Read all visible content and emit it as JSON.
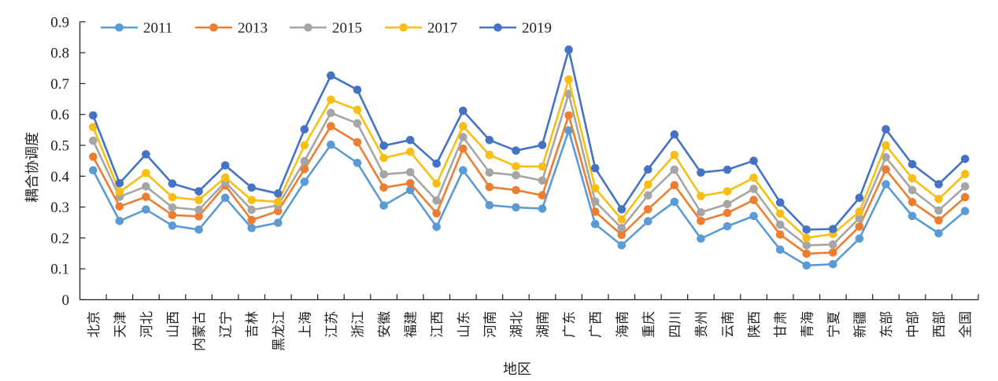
{
  "chart_data": {
    "type": "line",
    "title": "",
    "xlabel": "地区",
    "ylabel": "耦合协调度",
    "ylim": [
      0,
      0.9
    ],
    "yticks": [
      "0",
      "0.1",
      "0.2",
      "0.3",
      "0.4",
      "0.5",
      "0.6",
      "0.7",
      "0.8",
      "0.9"
    ],
    "ytick_values": [
      0,
      0.1,
      0.2,
      0.3,
      0.4,
      0.5,
      0.6,
      0.7,
      0.8,
      0.9
    ],
    "grid": false,
    "legend_position": "top-left",
    "categories": [
      "北京",
      "天津",
      "河北",
      "山西",
      "内蒙古",
      "辽宁",
      "吉林",
      "黑龙江",
      "上海",
      "江苏",
      "浙江",
      "安徽",
      "福建",
      "江西",
      "山东",
      "河南",
      "湖北",
      "湖南",
      "广东",
      "广西",
      "海南",
      "重庆",
      "四川",
      "贵州",
      "云南",
      "陕西",
      "甘肃",
      "青海",
      "宁夏",
      "新疆",
      "东部",
      "中部",
      "西部",
      "全国"
    ],
    "series": [
      {
        "name": "2011",
        "color": "#5B9BD5",
        "values": [
          0.419,
          0.255,
          0.292,
          0.24,
          0.227,
          0.33,
          0.232,
          0.249,
          0.382,
          0.502,
          0.443,
          0.305,
          0.355,
          0.236,
          0.419,
          0.306,
          0.299,
          0.295,
          0.548,
          0.245,
          0.176,
          0.254,
          0.317,
          0.198,
          0.238,
          0.271,
          0.162,
          0.111,
          0.115,
          0.198,
          0.374,
          0.271,
          0.215,
          0.287
        ]
      },
      {
        "name": "2013",
        "color": "#ED7D31",
        "values": [
          0.463,
          0.302,
          0.333,
          0.274,
          0.27,
          0.37,
          0.258,
          0.287,
          0.423,
          0.562,
          0.51,
          0.363,
          0.377,
          0.28,
          0.489,
          0.365,
          0.355,
          0.338,
          0.597,
          0.285,
          0.21,
          0.293,
          0.371,
          0.255,
          0.281,
          0.323,
          0.211,
          0.149,
          0.153,
          0.237,
          0.422,
          0.316,
          0.257,
          0.332
        ]
      },
      {
        "name": "2015",
        "color": "#A5A5A5",
        "values": [
          0.515,
          0.333,
          0.367,
          0.299,
          0.291,
          0.381,
          0.291,
          0.305,
          0.449,
          0.605,
          0.571,
          0.406,
          0.413,
          0.321,
          0.527,
          0.412,
          0.403,
          0.386,
          0.667,
          0.318,
          0.232,
          0.338,
          0.421,
          0.283,
          0.31,
          0.359,
          0.243,
          0.176,
          0.179,
          0.264,
          0.461,
          0.355,
          0.289,
          0.367
        ]
      },
      {
        "name": "2017",
        "color": "#F9BE13",
        "values": [
          0.559,
          0.349,
          0.41,
          0.332,
          0.323,
          0.396,
          0.323,
          0.317,
          0.5,
          0.648,
          0.615,
          0.459,
          0.479,
          0.376,
          0.562,
          0.469,
          0.432,
          0.431,
          0.713,
          0.361,
          0.26,
          0.373,
          0.469,
          0.336,
          0.351,
          0.395,
          0.279,
          0.2,
          0.213,
          0.285,
          0.5,
          0.393,
          0.326,
          0.407
        ]
      },
      {
        "name": "2019",
        "color": "#4472C4",
        "values": [
          0.597,
          0.377,
          0.471,
          0.376,
          0.351,
          0.435,
          0.363,
          0.344,
          0.552,
          0.726,
          0.68,
          0.499,
          0.517,
          0.441,
          0.612,
          0.517,
          0.483,
          0.501,
          0.81,
          0.426,
          0.293,
          0.422,
          0.535,
          0.412,
          0.421,
          0.45,
          0.315,
          0.227,
          0.229,
          0.33,
          0.552,
          0.439,
          0.374,
          0.456
        ]
      }
    ]
  }
}
